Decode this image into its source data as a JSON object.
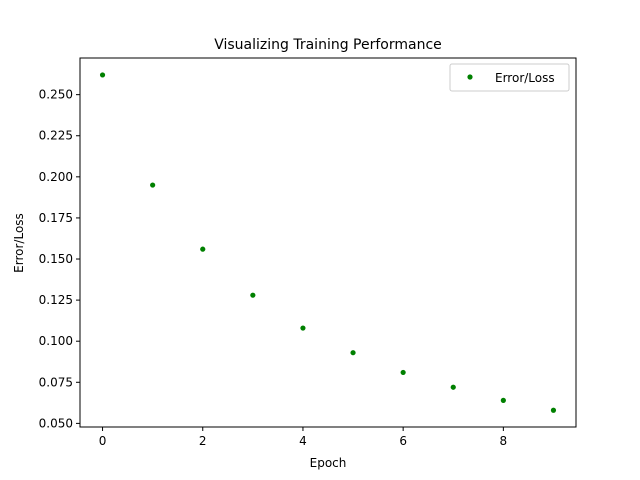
{
  "chart_data": {
    "type": "scatter",
    "title": "Visualizing Training Performance",
    "xlabel": "Epoch",
    "ylabel": "Error/Loss",
    "xlim": [
      -0.45,
      9.45
    ],
    "ylim": [
      0.0478,
      0.2723
    ],
    "xticks": [
      0,
      2,
      4,
      6,
      8
    ],
    "xtick_labels": [
      "0",
      "2",
      "4",
      "6",
      "8"
    ],
    "yticks": [
      0.05,
      0.075,
      0.1,
      0.125,
      0.15,
      0.175,
      0.2,
      0.225,
      0.25
    ],
    "ytick_labels": [
      "0.050",
      "0.075",
      "0.100",
      "0.125",
      "0.150",
      "0.175",
      "0.200",
      "0.225",
      "0.250"
    ],
    "grid": false,
    "legend_position": "top-right",
    "series": [
      {
        "name": "Error/Loss",
        "color": "#008000",
        "marker": "dot",
        "x": [
          0,
          1,
          2,
          3,
          4,
          5,
          6,
          7,
          8,
          9
        ],
        "y": [
          0.262,
          0.195,
          0.156,
          0.128,
          0.108,
          0.093,
          0.081,
          0.072,
          0.064,
          0.058
        ]
      }
    ]
  }
}
